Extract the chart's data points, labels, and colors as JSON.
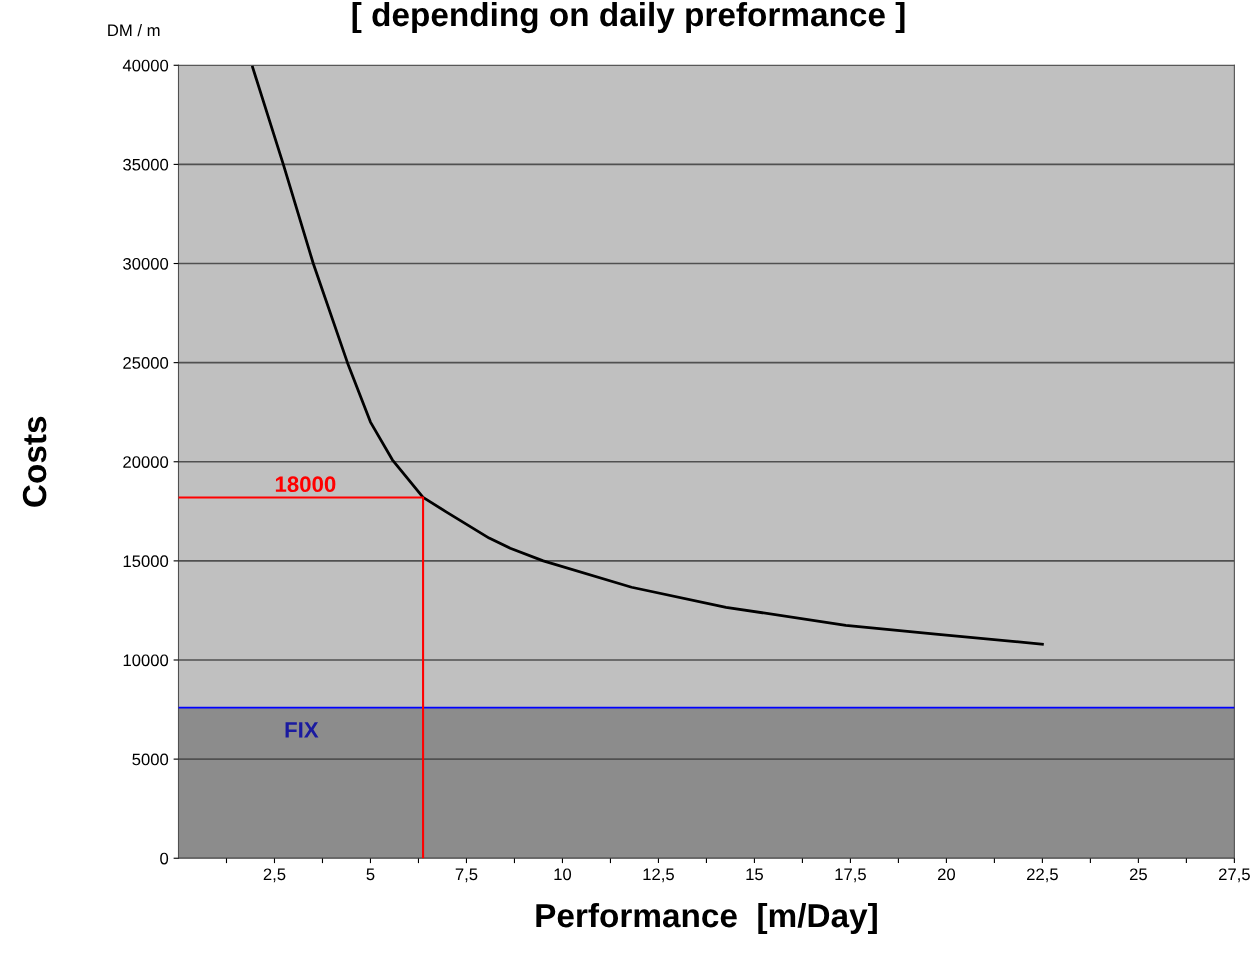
{
  "chart_data": {
    "type": "line",
    "title": "[ depending on daily preformance ]",
    "xlabel": "Performance  [m/Day]",
    "ylabel": "Costs",
    "annotations": [
      "DM / m",
      {
        "text": "18000",
        "x": 2.5,
        "y": 18000
      }
    ],
    "series": [
      {
        "color": "#000000",
        "x": [
          1.93,
          2.73,
          3.51,
          4.4,
          5.0,
          5.57,
          6.37,
          6.95,
          8.09,
          8.64,
          9.5,
          11.8,
          14.26,
          17.38,
          19.72,
          22.5
        ],
        "values": [
          39900,
          35000,
          30000,
          25000,
          22000,
          20100,
          18200,
          17500,
          16150,
          15640,
          15000,
          13670,
          12660,
          11750,
          11300,
          10800
        ]
      },
      {
        "color": "#ff0000",
        "x": [
          0,
          6.37,
          6.37
        ],
        "values": [
          18200,
          18200,
          0
        ]
      }
    ],
    "bands": [
      {
        "axis": "y",
        "from": 0,
        "to": 7600,
        "label": "FIX",
        "color": "#8c8c8c"
      }
    ],
    "ref_lines": [
      {
        "axis": "y",
        "value": 7600,
        "color": "#0000ff"
      }
    ],
    "xlim": [
      0,
      27.5
    ],
    "ylim": [
      0,
      40000
    ],
    "xticks": [
      {
        "value": 1.25,
        "label": null
      },
      {
        "value": 2.5,
        "label": "2,5"
      },
      {
        "value": 3.75,
        "label": null
      },
      5,
      {
        "value": 6.25,
        "label": null
      },
      {
        "value": 7.5,
        "label": "7,5"
      },
      {
        "value": 8.75,
        "label": null
      },
      10,
      {
        "value": 11.25,
        "label": null
      },
      {
        "value": 12.5,
        "label": "12,5"
      },
      {
        "value": 13.75,
        "label": null
      },
      15,
      {
        "value": 16.25,
        "label": null
      },
      {
        "value": 17.5,
        "label": "17,5"
      },
      {
        "value": 18.75,
        "label": null
      },
      20,
      {
        "value": 21.25,
        "label": null
      },
      {
        "value": 22.5,
        "label": "22,5"
      },
      {
        "value": 23.75,
        "label": null
      },
      25,
      {
        "value": 26.25,
        "label": null
      },
      {
        "value": 27.5,
        "label": "27,5"
      }
    ],
    "yticks": [
      0,
      5000,
      10000,
      15000,
      20000,
      25000,
      30000,
      35000,
      40000
    ],
    "grid": "y",
    "legend": false
  }
}
